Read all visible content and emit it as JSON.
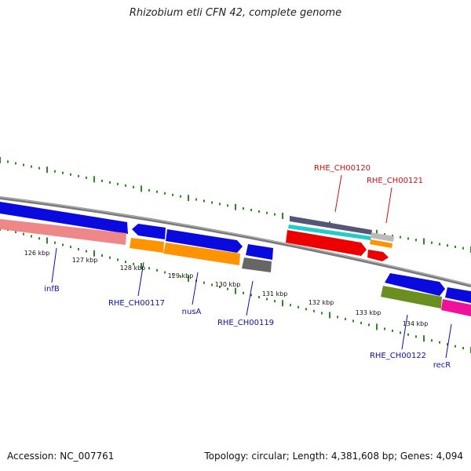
{
  "title": "Rhizobium etli CFN 42, complete genome",
  "footer": {
    "accession": "Accession: NC_007761",
    "summary": "Topology: circular; Length: 4,381,608 bp; Genes: 4,094"
  },
  "scale_labels": [
    "126 kbp",
    "127 kbp",
    "128 kbp",
    "129 kbp",
    "130 kbp",
    "131 kbp",
    "132 kbp",
    "133 kbp",
    "134 kbp"
  ],
  "gene_labels": {
    "infB": "infB",
    "rhe_ch00117": "RHE_CH00117",
    "nusA": "nusA",
    "rhe_ch00119": "RHE_CH00119",
    "rhe_ch00120": "RHE_CH00120",
    "rhe_ch00121": "RHE_CH00121",
    "rhe_ch00122": "RHE_CH00122",
    "recR": "recR"
  },
  "colors": {
    "blue": "#0a0adf",
    "pink": "#ee8888",
    "orange": "#ff9400",
    "grey": "#666666",
    "red": "#ee0000",
    "olive": "#6a8f20",
    "magenta": "#ee1199",
    "tick_green": "#2d8a1f",
    "label_blue": "#1010a0",
    "label_red": "#cc1111"
  }
}
